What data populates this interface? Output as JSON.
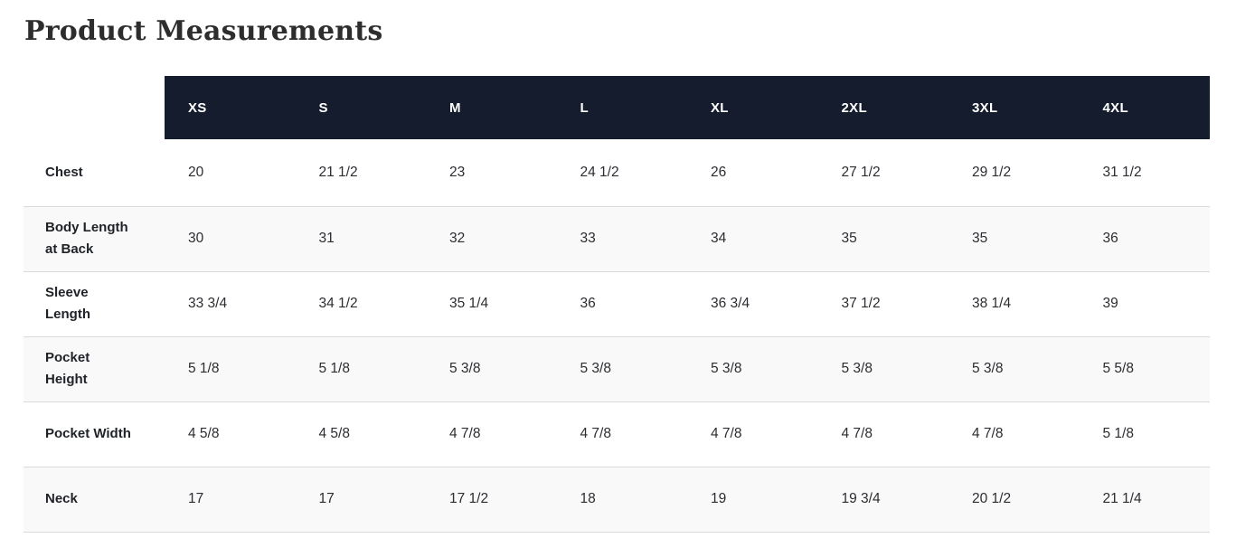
{
  "page": {
    "title": "Product Measurements"
  },
  "colors": {
    "header_bg": "#151c2d",
    "header_text": "#ffffff",
    "stripe_bg": "#f9f9f9",
    "border": "#d9d9d9",
    "body_text": "#2b2d31",
    "title_text": "#2d2d2d"
  },
  "table": {
    "sizes": [
      "XS",
      "S",
      "M",
      "L",
      "XL",
      "2XL",
      "3XL",
      "4XL"
    ],
    "rows": [
      {
        "label": "Chest",
        "values": [
          "20",
          "21 1/2",
          "23",
          "24 1/2",
          "26",
          "27 1/2",
          "29 1/2",
          "31 1/2"
        ]
      },
      {
        "label": "Body Length\nat Back",
        "values": [
          "30",
          "31",
          "32",
          "33",
          "34",
          "35",
          "35",
          "36"
        ]
      },
      {
        "label": "Sleeve\nLength",
        "values": [
          "33 3/4",
          "34 1/2",
          "35 1/4",
          "36",
          "36 3/4",
          "37 1/2",
          "38 1/4",
          "39"
        ]
      },
      {
        "label": "Pocket\nHeight",
        "values": [
          "5 1/8",
          "5 1/8",
          "5 3/8",
          "5 3/8",
          "5 3/8",
          "5 3/8",
          "5 3/8",
          "5 5/8"
        ]
      },
      {
        "label": "Pocket Width",
        "values": [
          "4 5/8",
          "4 5/8",
          "4 7/8",
          "4 7/8",
          "4 7/8",
          "4 7/8",
          "4 7/8",
          "5 1/8"
        ]
      },
      {
        "label": "Neck",
        "values": [
          "17",
          "17",
          "17 1/2",
          "18",
          "19",
          "19 3/4",
          "20 1/2",
          "21 1/4"
        ]
      }
    ]
  }
}
